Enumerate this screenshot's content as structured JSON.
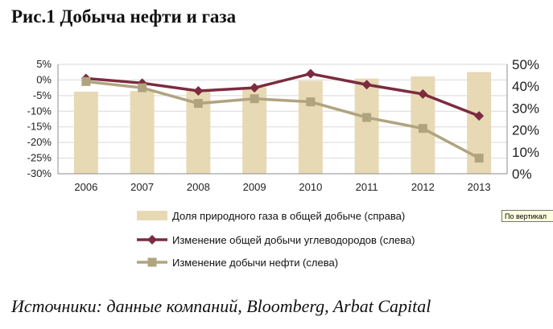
{
  "header": {
    "title": "Рис.1  Добыча нефти и газа"
  },
  "footer": {
    "source": "Источники: данные компаний, Bloomberg, Arbat Capital"
  },
  "tooltip": {
    "text": "По вертикал"
  },
  "chart_data": {
    "type": "bar+line",
    "title": "",
    "categories": [
      "2006",
      "2007",
      "2008",
      "2009",
      "2010",
      "2011",
      "2012",
      "2013"
    ],
    "y_left": {
      "ylim": [
        -30,
        5
      ],
      "ticks": [
        5,
        0,
        -5,
        -10,
        -15,
        -20,
        -25,
        -30
      ],
      "tick_labels": [
        "5%",
        "0%",
        "-5%",
        "-10%",
        "-15%",
        "-20%",
        "-25%",
        "-30%"
      ]
    },
    "y_right": {
      "ylim": [
        0,
        50
      ],
      "ticks": [
        50,
        40,
        30,
        20,
        10,
        0
      ],
      "tick_labels": [
        "50%",
        "40%",
        "30%",
        "20%",
        "10%",
        "0%"
      ]
    },
    "grid": "horizontal",
    "legend_position": "bottom",
    "series": [
      {
        "name": "Доля природного газа в общей добыче (справа)",
        "type": "bar",
        "axis": "right",
        "color": "#e8d9b5",
        "values": [
          37.5,
          37.8,
          38.5,
          39.5,
          42.5,
          43.5,
          44.5,
          46.5
        ]
      },
      {
        "name": "Изменение общей добычи углеводородов (слева)",
        "type": "line",
        "axis": "left",
        "color": "#7b2c3f",
        "marker": "diamond",
        "values": [
          0.5,
          -1.0,
          -3.5,
          -2.5,
          2.0,
          -1.5,
          -4.5,
          -11.5
        ]
      },
      {
        "name": "Изменение добычи нефти (слева)",
        "type": "line",
        "axis": "left",
        "color": "#b0a47f",
        "marker": "square",
        "values": [
          -0.5,
          -2.5,
          -7.5,
          -6.0,
          -7.0,
          -12.0,
          -15.5,
          -25.0
        ]
      }
    ]
  }
}
